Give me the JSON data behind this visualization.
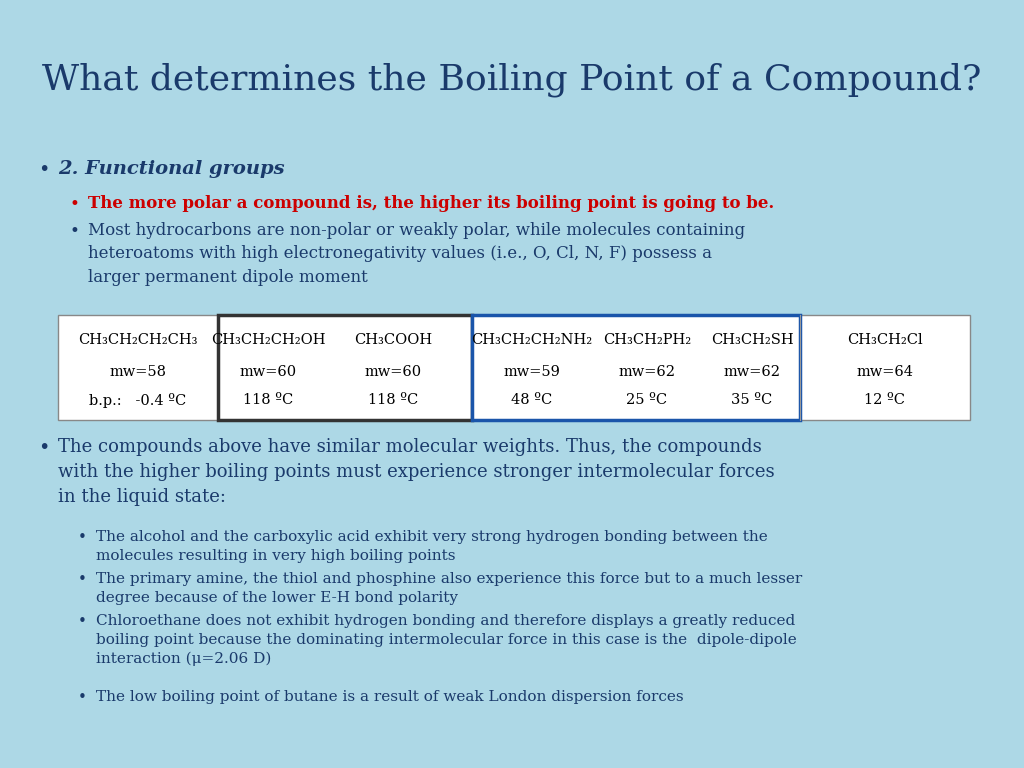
{
  "title": "What determines the Boiling Point of a Compound?",
  "title_color": "#1a3a6b",
  "background_color": "#add8e6",
  "text_color": "#1a3a6b",
  "red_color": "#cc0000",
  "table_bg": "#ffffff",
  "bullet1_bold": "2. Functional groups",
  "bullet2_red": "The more polar a compound is, the higher its boiling point is going to be.",
  "bullet2_text": "Most hydrocarbons are non-polar or weakly polar, while molecules containing\nheteroatoms with high electronegativity values (i.e., O, Cl, N, F) possess a\nlarger permanent dipole moment",
  "table_col1_lines": [
    "CH₃CH₂CH₂CH₃",
    "mw=58",
    "b.p.:   -0.4 ºC"
  ],
  "table_col2a": "CH₃CH₂CH₂OH",
  "table_col2b": "CH₃COOH",
  "table_col2_mw": [
    "mw=60",
    "mw=60"
  ],
  "table_col2_bp": [
    "118 ºC",
    "118 ºC"
  ],
  "table_col3a": "CH₃CH₂CH₂NH₂",
  "table_col3b": "CH₃CH₂PH₂",
  "table_col3c": "CH₃CH₂SH",
  "table_col3_mw": [
    "mw=59",
    "mw=62",
    "mw=62"
  ],
  "table_col3_bp": [
    "48 ºC",
    "25 ºC",
    "35 ºC"
  ],
  "table_col4_lines": [
    "CH₃CH₂Cl",
    "mw=64",
    "12 ºC"
  ],
  "bullet3_text": "The compounds above have similar molecular weights. Thus, the compounds\nwith the higher boiling points must experience stronger intermolecular forces\nin the liquid state:",
  "sub_bullets": [
    "The alcohol and the carboxylic acid exhibit very strong hydrogen bonding between the\nmolecules resulting in very high boiling points",
    "The primary amine, the thiol and phosphine also experience this force but to a much lesser\ndegree because of the lower E-H bond polarity",
    "Chloroethane does not exhibit hydrogen bonding and therefore displays a greatly reduced\nboiling point because the dominating intermolecular force in this case is the  dipole-dipole\ninteraction (μ=2.06 D)",
    "The low boiling point of butane is a result of weak London dispersion forces"
  ]
}
